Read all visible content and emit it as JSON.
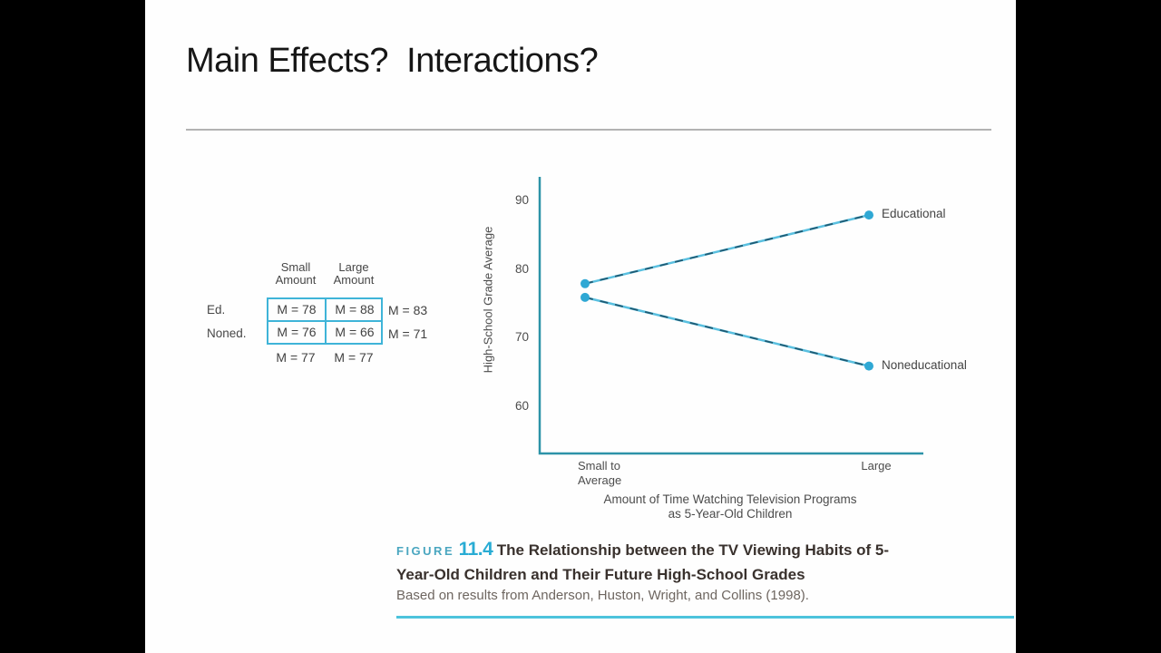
{
  "slide": {
    "title": "Main Effects?  Interactions?"
  },
  "means_table": {
    "col_headers": [
      "Small Amount",
      "Large Amount"
    ],
    "rows": [
      {
        "label": "Ed.",
        "cells": [
          "M = 78",
          "M = 88"
        ],
        "row_mean": "M = 83"
      },
      {
        "label": "Noned.",
        "cells": [
          "M = 76",
          "M = 66"
        ],
        "row_mean": "M = 71"
      }
    ],
    "col_means": [
      "M = 77",
      "M = 77"
    ]
  },
  "chart_data": {
    "type": "line",
    "categories": [
      "Small to Average",
      "Large"
    ],
    "series": [
      {
        "name": "Educational",
        "values": [
          78,
          88
        ]
      },
      {
        "name": "Noneducational",
        "values": [
          76,
          66
        ]
      }
    ],
    "xlabel": "Amount of Time Watching Television Programs as 5-Year-Old Children",
    "ylabel": "High-School Grade Average",
    "yticks": [
      90,
      80,
      70,
      60
    ],
    "ylim": [
      55,
      93
    ],
    "legend_position": "right-of-last-point",
    "grid": false,
    "colors": {
      "line": "#5ac0e0",
      "line_dash": "#1f5a73",
      "point": "#2fa8d4",
      "axis": "#2d93a8",
      "accent_rule": "#4cc3dc",
      "figure_label": "#4aa6c0",
      "figure_number": "#29acd4"
    }
  },
  "xaxis": {
    "tick1_line1": "Small to",
    "tick1_line2": "Average",
    "tick2": "Large",
    "title_line1": "Amount of Time Watching Television Programs",
    "title_line2": "as 5-Year-Old Children"
  },
  "caption": {
    "figure_label": "FIGURE",
    "figure_number": "11.4",
    "text": "The Relationship between the TV Viewing Habits of 5-Year-Old Children and Their Future High-School Grades",
    "source": "Based on results from Anderson, Huston, Wright, and Collins (1998)."
  }
}
